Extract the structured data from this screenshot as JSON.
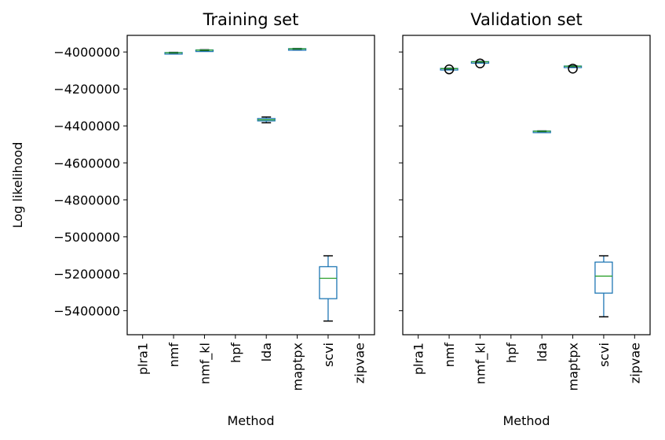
{
  "chart_data": [
    {
      "type": "box",
      "title": "Training set",
      "xlabel": "Method",
      "ylabel": "Log likelihood",
      "categories": [
        "plra1",
        "nmf",
        "nmf_kl",
        "hpf",
        "lda",
        "maptpx",
        "scvi",
        "zipvae"
      ],
      "yticks": [
        -4000000,
        -4200000,
        -4400000,
        -4600000,
        -4800000,
        -5000000,
        -5200000,
        -5400000
      ],
      "ylim": [
        -5530000,
        -3910000
      ],
      "boxes": [
        {
          "category": "nmf",
          "whislo": -4006000,
          "q1": -4005000,
          "median": -4004000,
          "q3": -4003000,
          "whishi": -4002000,
          "fliers": []
        },
        {
          "category": "nmf_kl",
          "whislo": -3992000,
          "q1": -3991000,
          "median": -3990000,
          "q3": -3989000,
          "whishi": -3988000,
          "fliers": []
        },
        {
          "category": "lda",
          "whislo": -4383000,
          "q1": -4373000,
          "median": -4367000,
          "q3": -4360000,
          "whishi": -4352000,
          "fliers": []
        },
        {
          "category": "maptpx",
          "whislo": -3985000,
          "q1": -3984000,
          "median": -3983000,
          "q3": -3982000,
          "whishi": -3981000,
          "fliers": []
        },
        {
          "category": "scvi",
          "whislo": -5456000,
          "q1": -5335000,
          "median": -5225000,
          "q3": -5162000,
          "whishi": -5103000,
          "fliers": []
        }
      ]
    },
    {
      "type": "box",
      "title": "Validation set",
      "xlabel": "Method",
      "ylabel": "",
      "categories": [
        "plra1",
        "nmf",
        "nmf_kl",
        "hpf",
        "lda",
        "maptpx",
        "scvi",
        "zipvae"
      ],
      "yticks": [
        -4000000,
        -4200000,
        -4400000,
        -4600000,
        -4800000,
        -5000000,
        -5200000,
        -5400000
      ],
      "ylim": [
        -5530000,
        -3910000
      ],
      "boxes": [
        {
          "category": "nmf",
          "whislo": -4092000,
          "q1": -4091000,
          "median": -4090000,
          "q3": -4089000,
          "whishi": -4088000,
          "fliers": [
            -4094000
          ]
        },
        {
          "category": "nmf_kl",
          "whislo": -4055000,
          "q1": -4054000,
          "median": -4053000,
          "q3": -4052000,
          "whishi": -4051000,
          "fliers": [
            -4062000
          ]
        },
        {
          "category": "lda",
          "whislo": -4431000,
          "q1": -4430000,
          "median": -4429000,
          "q3": -4428000,
          "whishi": -4427000,
          "fliers": []
        },
        {
          "category": "maptpx",
          "whislo": -4080000,
          "q1": -4079000,
          "median": -4077000,
          "q3": -4076000,
          "whishi": -4075000,
          "fliers": [
            -4090000
          ]
        },
        {
          "category": "scvi",
          "whislo": -5433000,
          "q1": -5305000,
          "median": -5213000,
          "q3": -5137000,
          "whishi": -5103000,
          "fliers": []
        }
      ]
    }
  ],
  "colors": {
    "box": "#1f77b4",
    "median": "#2ca02c",
    "whisker": "#1f77b4",
    "cap": "#000000",
    "flier": "#000000",
    "axis": "#000000",
    "background": "#ffffff"
  }
}
